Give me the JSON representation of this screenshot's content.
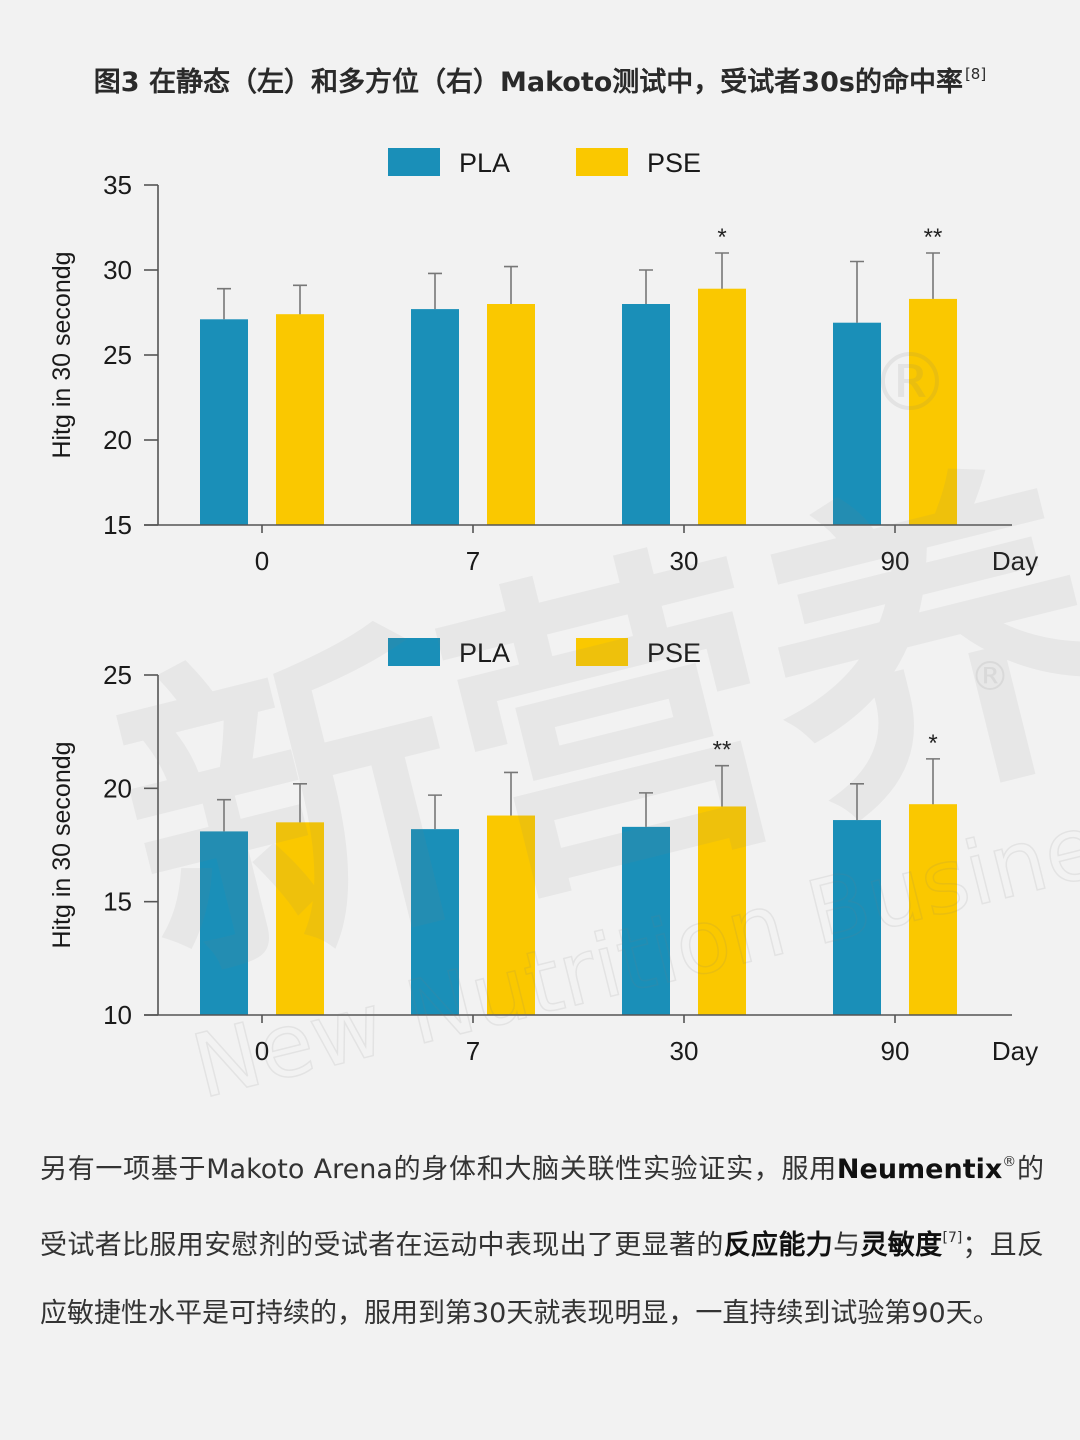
{
  "figure": {
    "title": "图3 在静态（左）和多方位（右）Makoto测试中，受试者30s的命中率",
    "title_ref": "[8]"
  },
  "colors": {
    "PLA": "#1a8fb8",
    "PSE": "#fac800",
    "background": "#f2f2f2"
  },
  "chart_data": [
    {
      "type": "bar",
      "categories": [
        "0",
        "7",
        "30",
        "90"
      ],
      "xlabel": "Day",
      "ylabel": "Hitg in 30 secondg",
      "ylim": [
        15,
        35
      ],
      "yticks": [
        15,
        20,
        25,
        30,
        35
      ],
      "legend": "top",
      "series": [
        {
          "name": "PLA",
          "values": [
            27.1,
            27.7,
            28.0,
            26.9
          ],
          "errors": [
            1.8,
            2.1,
            2.0,
            3.6
          ]
        },
        {
          "name": "PSE",
          "values": [
            27.4,
            28.0,
            28.9,
            28.3
          ],
          "errors": [
            1.7,
            2.2,
            2.1,
            2.7
          ]
        }
      ],
      "annotations": [
        {
          "series": "PSE",
          "category": "30",
          "text": "*"
        },
        {
          "series": "PSE",
          "category": "90",
          "text": "**"
        }
      ]
    },
    {
      "type": "bar",
      "categories": [
        "0",
        "7",
        "30",
        "90"
      ],
      "xlabel": "Day",
      "ylabel": "Hitg in 30 secondg",
      "ylim": [
        10,
        25
      ],
      "yticks": [
        10,
        15,
        20,
        25
      ],
      "legend": "top",
      "series": [
        {
          "name": "PLA",
          "values": [
            18.1,
            18.2,
            18.3,
            18.6
          ],
          "errors": [
            1.4,
            1.5,
            1.5,
            1.6
          ]
        },
        {
          "name": "PSE",
          "values": [
            18.5,
            18.8,
            19.2,
            19.3
          ],
          "errors": [
            1.7,
            1.9,
            1.8,
            2.0
          ]
        }
      ],
      "annotations": [
        {
          "series": "PSE",
          "category": "30",
          "text": "**"
        },
        {
          "series": "PSE",
          "category": "90",
          "text": "*"
        }
      ]
    }
  ],
  "body": {
    "p1": "另有一项基于Makoto Arena的身体和大脑关联性实验证实，服用",
    "brand": "Neumentix",
    "brand_mark": "®",
    "p2": "的受试者比服用安慰剂的受试者在运动中表现出了更显著的",
    "bold1": "反应能力",
    "p3": "与",
    "bold2": "灵敏度",
    "ref": "[7]",
    "p4": "；且反应敏捷性水平是可持续的，服用到第30天就表现明显，一直持续到试验第90天。"
  },
  "watermark": {
    "cn": "新营养",
    "en": "New Nutrition Business",
    "mark": "®"
  }
}
